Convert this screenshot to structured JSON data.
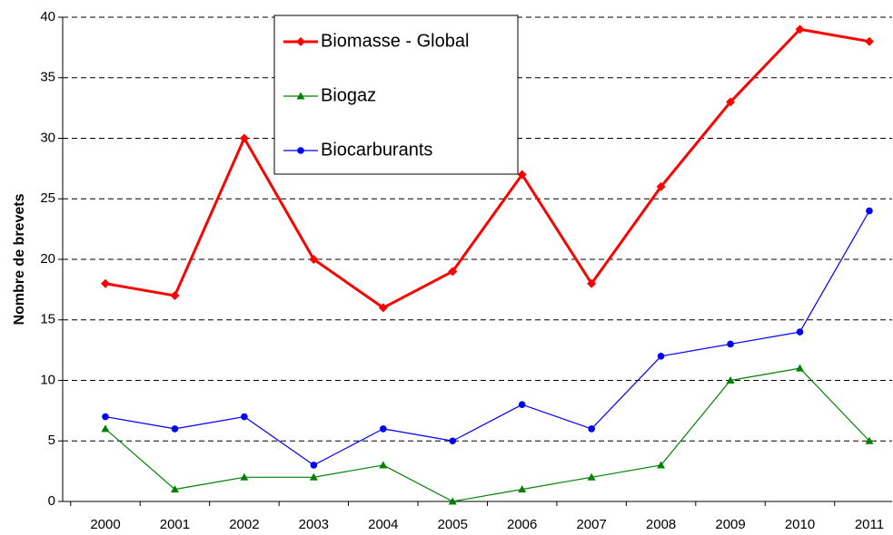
{
  "chart_data": {
    "type": "line",
    "y_label": "Nombre de brevets",
    "categories": [
      "2000",
      "2001",
      "2002",
      "2003",
      "2004",
      "2005",
      "2006",
      "2007",
      "2008",
      "2009",
      "2010",
      "2011"
    ],
    "series": [
      {
        "name": "Biomasse - Global",
        "color": "#ff0000",
        "marker": "diamond",
        "values": [
          18,
          17,
          30,
          20,
          16,
          19,
          27,
          18,
          26,
          33,
          39,
          38
        ]
      },
      {
        "name": "Biogaz",
        "color": "#008000",
        "marker": "triangle",
        "values": [
          6,
          1,
          2,
          2,
          3,
          0,
          1,
          2,
          3,
          10,
          11,
          5
        ]
      },
      {
        "name": "Biocarburants",
        "color": "#0000ff",
        "marker": "circle",
        "values": [
          7,
          6,
          7,
          3,
          6,
          5,
          8,
          6,
          12,
          13,
          14,
          24
        ]
      }
    ],
    "ylim": [
      0,
      40
    ],
    "yticks": [
      0,
      5,
      10,
      15,
      20,
      25,
      30,
      35,
      40
    ],
    "grid": true
  }
}
